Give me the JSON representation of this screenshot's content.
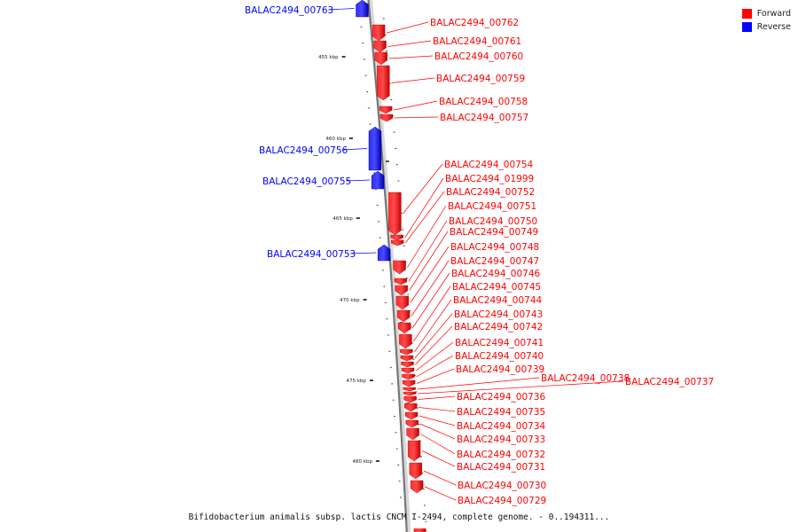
{
  "legend": {
    "forward_label": "Forward",
    "reverse_label": "Reverse",
    "forward_color": "#ff0000",
    "reverse_color": "#0000ff"
  },
  "caption": "Bifidobacterium animalis subsp. lactis CNCM I-2494, complete genome. - 0..194311...",
  "axis": {
    "ticks": [
      "455 kbp",
      "460 kbp",
      "465 kbp",
      "470 kbp",
      "475 kbp",
      "480 kbp"
    ]
  },
  "genes": [
    {
      "id": "BALAC2494_00763",
      "strand": "reverse"
    },
    {
      "id": "BALAC2494_00762",
      "strand": "forward"
    },
    {
      "id": "BALAC2494_00761",
      "strand": "forward"
    },
    {
      "id": "BALAC2494_00760",
      "strand": "forward"
    },
    {
      "id": "BALAC2494_00759",
      "strand": "forward"
    },
    {
      "id": "BALAC2494_00758",
      "strand": "forward"
    },
    {
      "id": "BALAC2494_00757",
      "strand": "forward"
    },
    {
      "id": "BALAC2494_00756",
      "strand": "reverse"
    },
    {
      "id": "BALAC2494_00755",
      "strand": "reverse"
    },
    {
      "id": "BALAC2494_00754",
      "strand": "forward"
    },
    {
      "id": "BALAC2494_01999",
      "strand": "forward"
    },
    {
      "id": "BALAC2494_00752",
      "strand": "forward"
    },
    {
      "id": "BALAC2494_00753",
      "strand": "reverse"
    },
    {
      "id": "BALAC2494_00751",
      "strand": "forward"
    },
    {
      "id": "BALAC2494_00750",
      "strand": "forward"
    },
    {
      "id": "BALAC2494_00749",
      "strand": "forward"
    },
    {
      "id": "BALAC2494_00748",
      "strand": "forward"
    },
    {
      "id": "BALAC2494_00747",
      "strand": "forward"
    },
    {
      "id": "BALAC2494_00746",
      "strand": "forward"
    },
    {
      "id": "BALAC2494_00745",
      "strand": "forward"
    },
    {
      "id": "BALAC2494_00744",
      "strand": "forward"
    },
    {
      "id": "BALAC2494_00743",
      "strand": "forward"
    },
    {
      "id": "BALAC2494_00742",
      "strand": "forward"
    },
    {
      "id": "BALAC2494_00741",
      "strand": "forward"
    },
    {
      "id": "BALAC2494_00740",
      "strand": "forward"
    },
    {
      "id": "BALAC2494_00739",
      "strand": "forward"
    },
    {
      "id": "BALAC2494_00738",
      "strand": "forward"
    },
    {
      "id": "BALAC2494_00737",
      "strand": "forward"
    },
    {
      "id": "BALAC2494_00736",
      "strand": "forward"
    },
    {
      "id": "BALAC2494_00735",
      "strand": "forward"
    },
    {
      "id": "BALAC2494_00734",
      "strand": "forward"
    },
    {
      "id": "BALAC2494_00733",
      "strand": "forward"
    },
    {
      "id": "BALAC2494_00732",
      "strand": "forward"
    },
    {
      "id": "BALAC2494_00731",
      "strand": "forward"
    },
    {
      "id": "BALAC2494_00730",
      "strand": "forward"
    },
    {
      "id": "BALAC2494_00729",
      "strand": "forward"
    }
  ]
}
